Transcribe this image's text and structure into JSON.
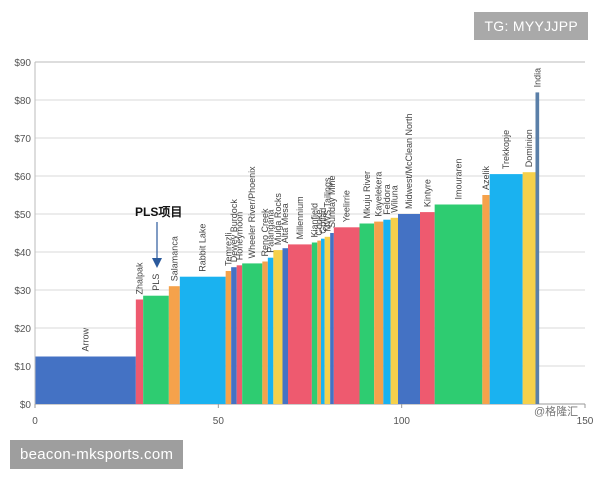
{
  "chart_data": {
    "type": "bar",
    "style": "variable-width cost curve",
    "xlim": [
      0,
      150
    ],
    "ylim": [
      0,
      90
    ],
    "x_ticks": [
      0,
      50,
      100,
      150
    ],
    "y_ticks": [
      "$0",
      "$10",
      "$20",
      "$30",
      "$40",
      "$50",
      "$60",
      "$70",
      "$80",
      "$90"
    ],
    "gridlines": true,
    "bars": [
      {
        "name": "Arrow",
        "x0": 0,
        "x1": 27.5,
        "value": 12.5,
        "color": "#4472c4"
      },
      {
        "name": "Zhalpak",
        "x0": 27.5,
        "x1": 29.5,
        "value": 27.5,
        "color": "#ee5a6f"
      },
      {
        "name": "PLS",
        "x0": 29.5,
        "x1": 36.5,
        "value": 28.5,
        "color": "#2ecc71"
      },
      {
        "name": "Salamanca",
        "x0": 36.5,
        "x1": 39.5,
        "value": 31,
        "color": "#f5a24b"
      },
      {
        "name": "Rabbit Lake",
        "x0": 39.5,
        "x1": 52,
        "value": 33.5,
        "color": "#1ab2f0"
      },
      {
        "name": "Temrezli",
        "x0": 52,
        "x1": 53.5,
        "value": 35,
        "color": "#f5a24b"
      },
      {
        "name": "Dewey Burdock",
        "x0": 53.5,
        "x1": 55,
        "value": 36,
        "color": "#4472c4"
      },
      {
        "name": "Honeymoon",
        "x0": 55,
        "x1": 56.5,
        "value": 36.5,
        "color": "#ee5a6f"
      },
      {
        "name": "Wheeler River/Phoenix",
        "x0": 56.5,
        "x1": 62,
        "value": 37,
        "color": "#2ecc71"
      },
      {
        "name": "Reno Creek",
        "x0": 62,
        "x1": 63.5,
        "value": 37.5,
        "color": "#f5a24b"
      },
      {
        "name": "Palangana",
        "x0": 63.5,
        "x1": 65,
        "value": 38.5,
        "color": "#1ab2f0"
      },
      {
        "name": "Mulga Rocks",
        "x0": 65,
        "x1": 67.5,
        "value": 40.5,
        "color": "#f5d04b"
      },
      {
        "name": "Alta Mesa",
        "x0": 67.5,
        "x1": 69,
        "value": 41,
        "color": "#4472c4"
      },
      {
        "name": "Millennium",
        "x0": 69,
        "x1": 75.5,
        "value": 42,
        "color": "#ee5a6f"
      },
      {
        "name": "Kianfield",
        "x0": 75.5,
        "x1": 77,
        "value": 42.5,
        "color": "#2ecc71"
      },
      {
        "name": "Cooke",
        "x0": 77,
        "x1": 78,
        "value": 43,
        "color": "#f5a24b"
      },
      {
        "name": "Goliad",
        "x0": 78,
        "x1": 79,
        "value": 43.5,
        "color": "#1ab2f0"
      },
      {
        "name": "MWS Tailings",
        "x0": 79,
        "x1": 80.5,
        "value": 44,
        "color": "#f5d04b"
      },
      {
        "name": "Sunday Mine",
        "x0": 80.5,
        "x1": 81.5,
        "value": 45,
        "color": "#4472c4"
      },
      {
        "name": "Yeelirrie",
        "x0": 81.5,
        "x1": 88.5,
        "value": 46.5,
        "color": "#ee5a6f"
      },
      {
        "name": "Mkuju River",
        "x0": 88.5,
        "x1": 92.5,
        "value": 47.5,
        "color": "#2ecc71"
      },
      {
        "name": "Kayelekera",
        "x0": 92.5,
        "x1": 95,
        "value": 48,
        "color": "#f5a24b"
      },
      {
        "name": "Feldora",
        "x0": 95,
        "x1": 97,
        "value": 48.5,
        "color": "#1ab2f0"
      },
      {
        "name": "Wiluna",
        "x0": 97,
        "x1": 99,
        "value": 49,
        "color": "#f5d04b"
      },
      {
        "name": "Midwest/McClean North",
        "x0": 99,
        "x1": 105,
        "value": 50,
        "color": "#4472c4"
      },
      {
        "name": "Kintyre",
        "x0": 105,
        "x1": 109,
        "value": 50.5,
        "color": "#ee5a6f"
      },
      {
        "name": "Imouraren",
        "x0": 109,
        "x1": 122,
        "value": 52.5,
        "color": "#2ecc71"
      },
      {
        "name": "Azelik",
        "x0": 122,
        "x1": 124,
        "value": 55,
        "color": "#f5a24b"
      },
      {
        "name": "Trekkopje",
        "x0": 124,
        "x1": 133,
        "value": 60.5,
        "color": "#1ab2f0"
      },
      {
        "name": "Dominion",
        "x0": 133,
        "x1": 136.5,
        "value": 61,
        "color": "#f5d04b"
      },
      {
        "name": "India",
        "x0": 136.5,
        "x1": 137.5,
        "value": 82,
        "color": "#5a7fa8"
      }
    ],
    "annotations": [
      {
        "text": "PLS项目",
        "target": "PLS"
      }
    ]
  },
  "watermarks": {
    "top_badge": "TG: MYYJJPP",
    "bottom_badge": "beacon-mksports.com",
    "source_mark": "@格隆汇"
  }
}
